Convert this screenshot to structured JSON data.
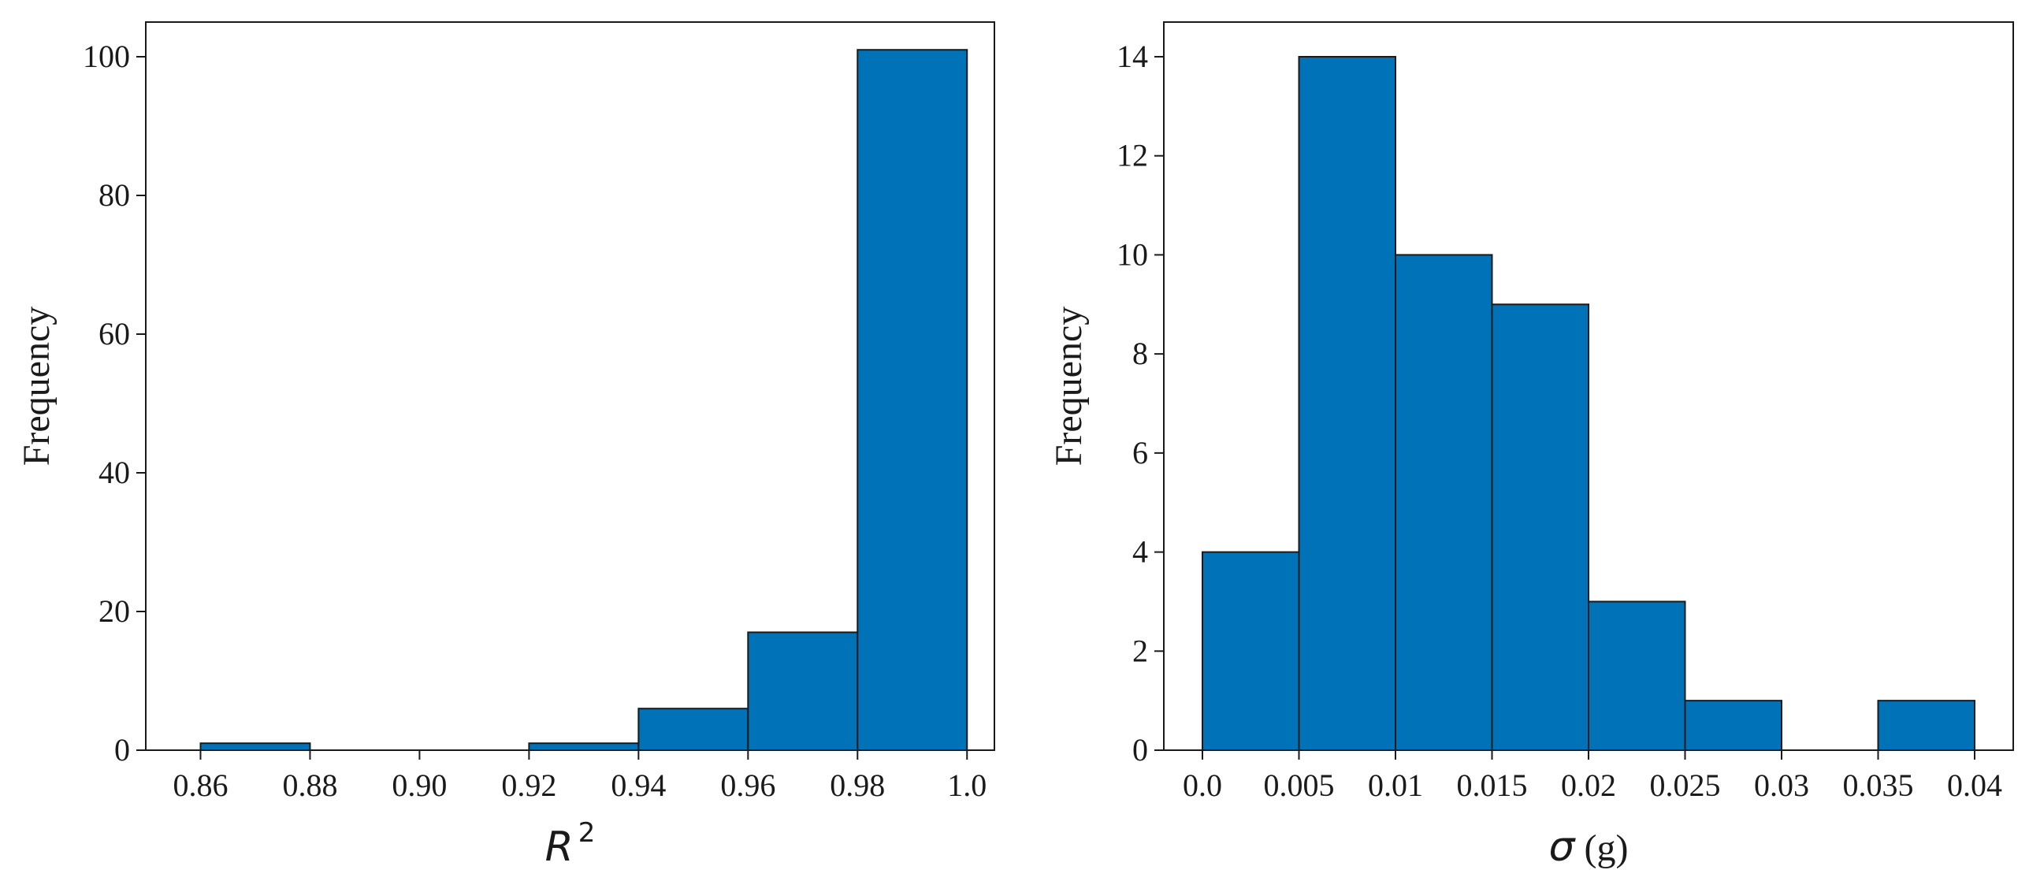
{
  "colors": {
    "bar_fill": "#0072b8",
    "edge": "#1a1a1a"
  },
  "chart_data": [
    {
      "type": "bar",
      "histogram": true,
      "bin_edges": [
        0.86,
        0.88,
        0.9,
        0.92,
        0.94,
        0.96,
        0.98,
        1.0
      ],
      "values": [
        1,
        0,
        0,
        1,
        6,
        17,
        101
      ],
      "xlim": [
        0.85,
        1.005
      ],
      "ylim": [
        0,
        105
      ],
      "xticks": [
        0.86,
        0.88,
        0.9,
        0.92,
        0.94,
        0.96,
        0.98,
        1.0
      ],
      "xtick_labels": [
        "0.86",
        "0.88",
        "0.90",
        "0.92",
        "0.94",
        "0.96",
        "0.98",
        "1.0"
      ],
      "yticks": [
        0,
        20,
        40,
        60,
        80,
        100
      ],
      "ytick_labels": [
        "0",
        "20",
        "40",
        "60",
        "80",
        "100"
      ],
      "xlabel": "R",
      "xlabel_superscript": "2",
      "xlabel_suffix": "",
      "ylabel": "Frequency",
      "grid": false
    },
    {
      "type": "bar",
      "histogram": true,
      "bin_edges": [
        0.0,
        0.005,
        0.01,
        0.015,
        0.02,
        0.025,
        0.03,
        0.035,
        0.04
      ],
      "values": [
        4,
        14,
        10,
        9,
        3,
        1,
        0,
        1
      ],
      "xlim": [
        -0.002,
        0.042
      ],
      "ylim": [
        0,
        14.7
      ],
      "xticks": [
        0.0,
        0.005,
        0.01,
        0.015,
        0.02,
        0.025,
        0.03,
        0.035,
        0.04
      ],
      "xtick_labels": [
        "0.0",
        "0.005",
        "0.01",
        "0.015",
        "0.02",
        "0.025",
        "0.03",
        "0.035",
        "0.04"
      ],
      "yticks": [
        0,
        2,
        4,
        6,
        8,
        10,
        12,
        14
      ],
      "ytick_labels": [
        "0",
        "2",
        "4",
        "6",
        "8",
        "10",
        "12",
        "14"
      ],
      "xlabel": "σ",
      "xlabel_superscript": "",
      "xlabel_suffix": " (g)",
      "ylabel": "Frequency",
      "grid": false
    }
  ]
}
